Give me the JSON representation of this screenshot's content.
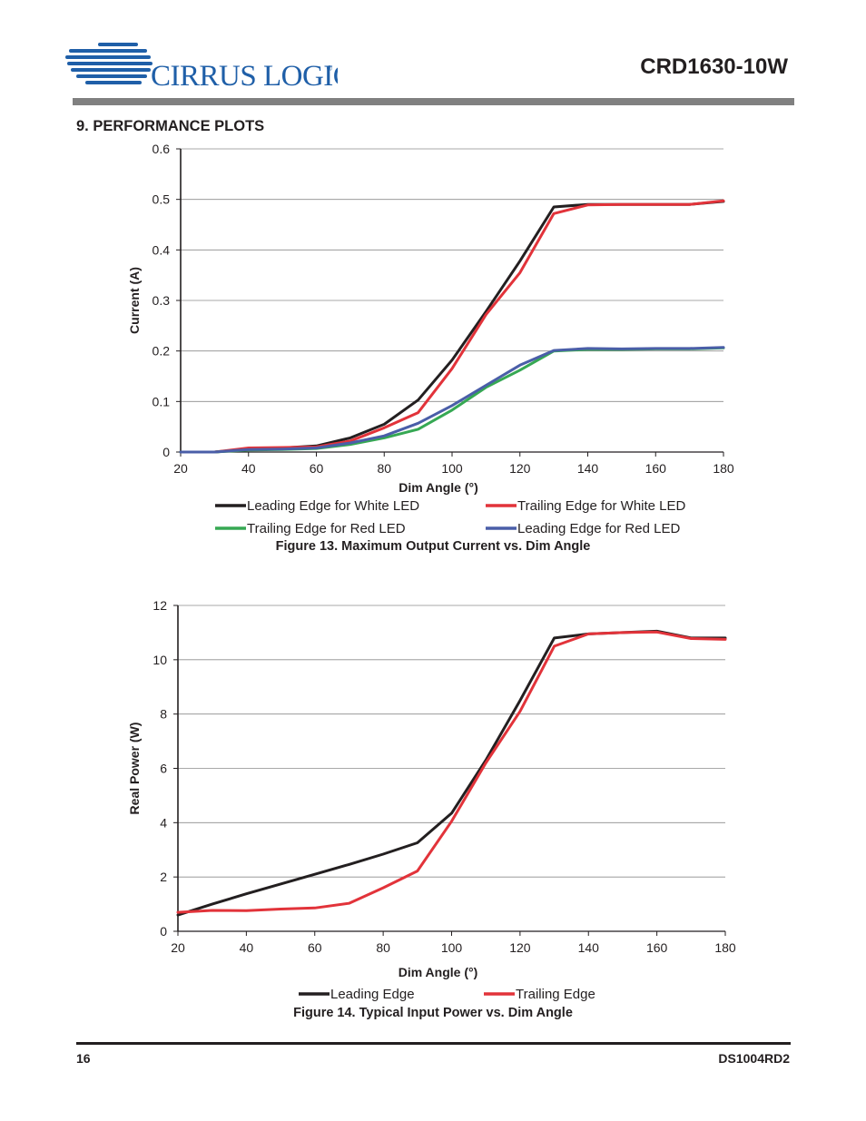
{
  "header": {
    "logo_text": "CIRRUS LOGIC",
    "logo_mark": "®",
    "doc_title": "CRD1630-10W"
  },
  "section_heading": "9.  PERFORMANCE PLOTS",
  "chart_data": [
    {
      "type": "line",
      "caption": "Figure 13.  Maximum Output Current vs. Dim Angle",
      "xlabel": "Dim Angle (°)",
      "ylabel": "Current (A)",
      "xlim": [
        20,
        180
      ],
      "ylim": [
        0,
        0.6
      ],
      "x_ticks": [
        20,
        40,
        60,
        80,
        100,
        120,
        140,
        160,
        180
      ],
      "y_ticks": [
        0,
        0.1,
        0.2,
        0.3,
        0.4,
        0.5,
        0.6
      ],
      "y_tick_labels": [
        "0",
        "0.1",
        "0.2",
        "0.3",
        "0.4",
        "0.5",
        "0.6"
      ],
      "grid": "horizontal",
      "legend_position": "bottom",
      "x": [
        20,
        30,
        40,
        50,
        60,
        70,
        80,
        90,
        100,
        110,
        120,
        130,
        140,
        150,
        160,
        170,
        180
      ],
      "series": [
        {
          "name": "Leading Edge for White LED",
          "color": "#231f20",
          "values": [
            0.0,
            0.0,
            0.006,
            0.008,
            0.012,
            0.028,
            0.055,
            0.103,
            0.182,
            0.278,
            0.378,
            0.485,
            0.49,
            0.49,
            0.49,
            0.49,
            0.496
          ]
        },
        {
          "name": "Trailing Edge for White LED",
          "color": "#e2333a",
          "values": [
            0.0,
            0.0,
            0.008,
            0.009,
            0.01,
            0.022,
            0.048,
            0.078,
            0.165,
            0.272,
            0.355,
            0.472,
            0.489,
            0.49,
            0.49,
            0.49,
            0.497
          ]
        },
        {
          "name": "Trailing Edge for Red LED",
          "color": "#36a853",
          "values": [
            0.0,
            0.0,
            0.004,
            0.005,
            0.007,
            0.015,
            0.028,
            0.045,
            0.083,
            0.128,
            0.162,
            0.2,
            0.203,
            0.203,
            0.204,
            0.204,
            0.206
          ]
        },
        {
          "name": "Leading Edge for Red LED",
          "color": "#4a5ea8",
          "values": [
            0.0,
            0.0,
            0.005,
            0.006,
            0.008,
            0.018,
            0.032,
            0.057,
            0.092,
            0.132,
            0.172,
            0.201,
            0.205,
            0.204,
            0.205,
            0.205,
            0.207
          ]
        }
      ]
    },
    {
      "type": "line",
      "caption": "Figure 14.  Typical Input Power vs. Dim Angle",
      "xlabel": "Dim Angle (°)",
      "ylabel": "Real Power (W)",
      "xlim": [
        20,
        180
      ],
      "ylim": [
        0,
        12
      ],
      "x_ticks": [
        20,
        40,
        60,
        80,
        100,
        120,
        140,
        160,
        180
      ],
      "y_ticks": [
        0,
        2,
        4,
        6,
        8,
        10,
        12
      ],
      "y_tick_labels": [
        "0",
        "2",
        "4",
        "6",
        "8",
        "10",
        "12"
      ],
      "grid": "horizontal",
      "legend_position": "bottom",
      "x": [
        20,
        30,
        40,
        50,
        60,
        70,
        80,
        90,
        100,
        110,
        120,
        130,
        140,
        150,
        160,
        170,
        180
      ],
      "series": [
        {
          "name": "Leading Edge",
          "color": "#231f20",
          "values": [
            0.6,
            1.0,
            1.38,
            1.74,
            2.1,
            2.46,
            2.84,
            3.26,
            4.35,
            6.3,
            8.5,
            10.8,
            10.95,
            11.0,
            11.05,
            10.8,
            10.8
          ]
        },
        {
          "name": "Trailing Edge",
          "color": "#e2333a",
          "values": [
            0.7,
            0.77,
            0.76,
            0.82,
            0.86,
            1.03,
            1.6,
            2.22,
            4.05,
            6.2,
            8.1,
            10.5,
            10.95,
            11.0,
            11.02,
            10.78,
            10.75
          ]
        }
      ]
    }
  ],
  "footer": {
    "page_number": "16",
    "doc_code": "DS1004RD2"
  }
}
